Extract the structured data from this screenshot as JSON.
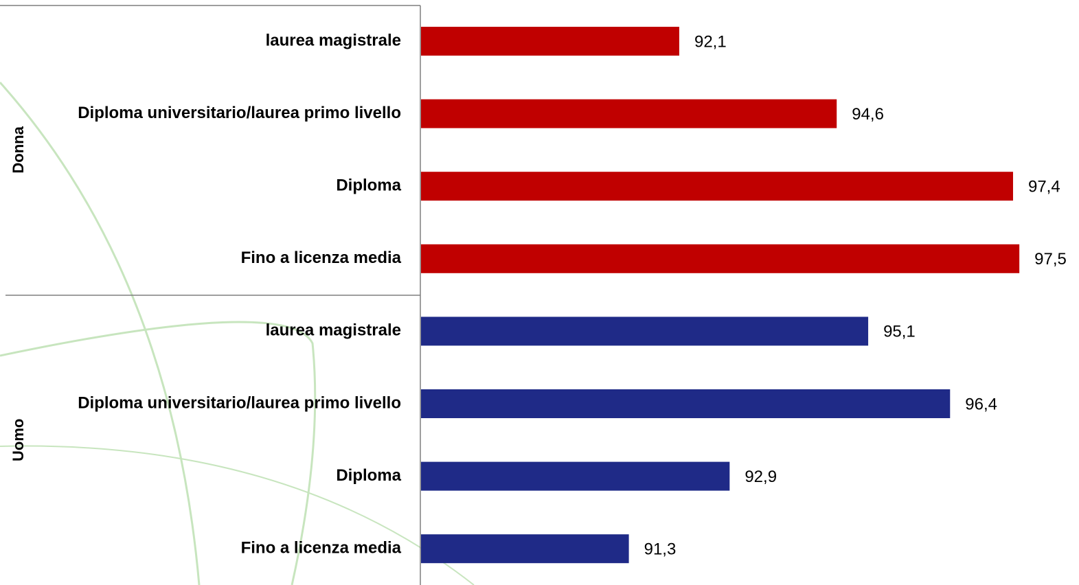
{
  "chart_data": {
    "type": "bar",
    "orientation": "horizontal",
    "xlim": [
      88,
      98
    ],
    "series": [
      {
        "name": "Donna",
        "color": "#c00000",
        "categories": [
          "laurea magistrale",
          "Diploma universitario/laurea primo livello",
          "Diploma",
          "Fino a licenza media"
        ],
        "values": [
          92.1,
          94.6,
          97.4,
          97.5
        ],
        "value_labels": [
          "92,1",
          "94,6",
          "97,4",
          "97,5"
        ]
      },
      {
        "name": "Uomo",
        "color": "#1f2a87",
        "categories": [
          "laurea magistrale",
          "Diploma universitario/laurea primo livello",
          "Diploma",
          "Fino a licenza media"
        ],
        "values": [
          95.1,
          96.4,
          92.9,
          91.3
        ],
        "value_labels": [
          "95,1",
          "96,4",
          "92,9",
          "91,3"
        ]
      }
    ]
  }
}
